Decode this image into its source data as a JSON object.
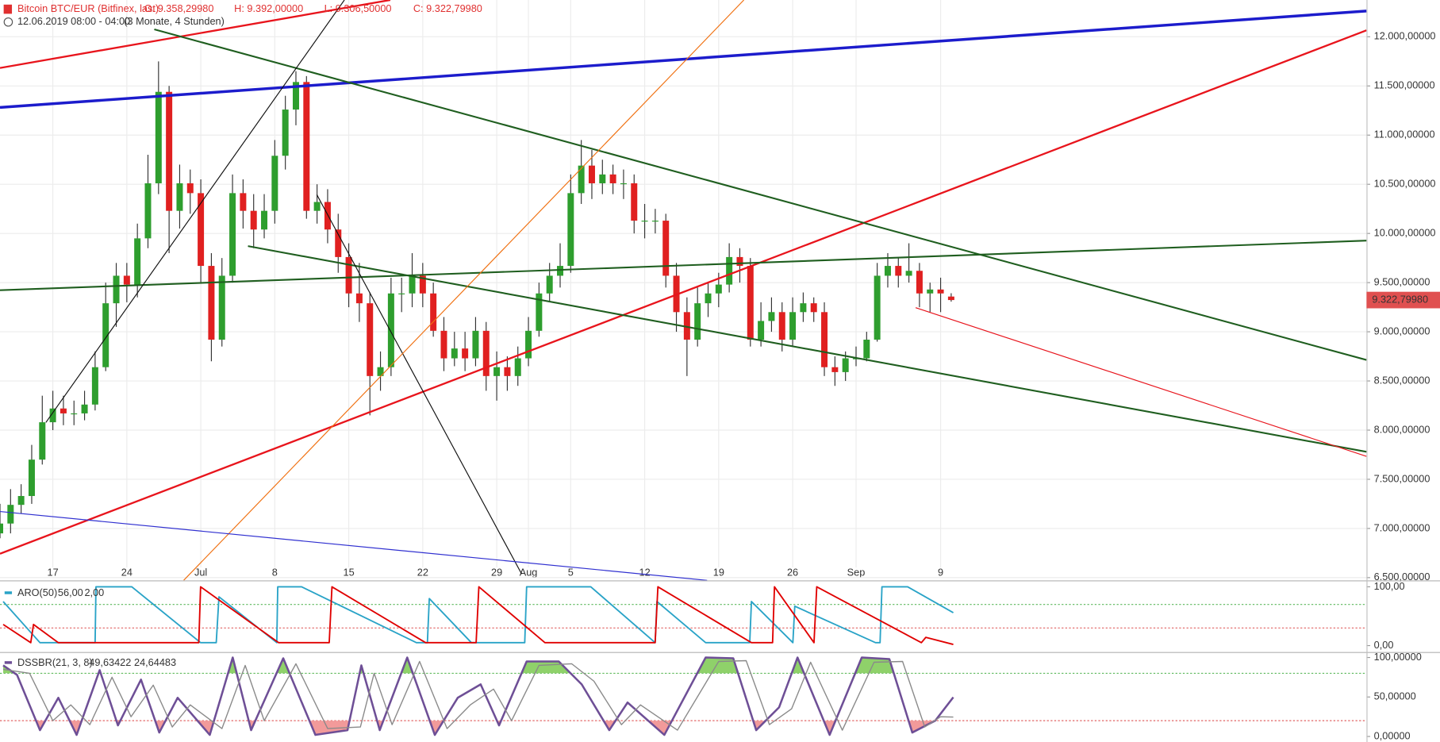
{
  "chart_data": [
    {
      "type": "candlestick",
      "title": "Bitcoin BTC/EUR (Bitfinex, last)",
      "header_values": [
        "O: 9.358,29980",
        "H: 9.392,00000",
        "L: 9.306,50000",
        "C: 9.322,79980"
      ],
      "subtitle": "12.06.2019 08:00 - 04:00",
      "period": "(3 Monate, 4 Stunden)",
      "last_price_label": "9.322,79980",
      "last_price_color": "#e05050",
      "up_color": "#2e9e2e",
      "down_color": "#e02020",
      "wick_color": "#333333",
      "grid": true,
      "xlim": [
        0,
        129.3
      ],
      "xticks": [
        {
          "value": 5,
          "label": "17"
        },
        {
          "value": 12,
          "label": "24"
        },
        {
          "value": 19,
          "label": "Jul"
        },
        {
          "value": 26,
          "label": "8"
        },
        {
          "value": 33,
          "label": "15"
        },
        {
          "value": 40,
          "label": "22"
        },
        {
          "value": 47,
          "label": "29"
        },
        {
          "value": 50,
          "label": "Aug"
        },
        {
          "value": 54,
          "label": "5"
        },
        {
          "value": 61,
          "label": "12"
        },
        {
          "value": 68,
          "label": "19"
        },
        {
          "value": 75,
          "label": "26"
        },
        {
          "value": 81,
          "label": "Sep"
        },
        {
          "value": 89,
          "label": "9"
        }
      ],
      "ylim": [
        6472,
        12374
      ],
      "yticks": [
        {
          "value": 12000,
          "label": "12.000,00000"
        },
        {
          "value": 11500,
          "label": "11.500,00000"
        },
        {
          "value": 11000,
          "label": "11.000,00000"
        },
        {
          "value": 10500,
          "label": "10.500,00000"
        },
        {
          "value": 10000,
          "label": "10.000,00000"
        },
        {
          "value": 9500,
          "label": "9.500,00000"
        },
        {
          "value": 9000,
          "label": "9.000,00000"
        },
        {
          "value": 8500,
          "label": "8.500,00000"
        },
        {
          "value": 8000,
          "label": "8.000,00000"
        },
        {
          "value": 7500,
          "label": "7.500,00000"
        },
        {
          "value": 7000,
          "label": "7.000,00000"
        },
        {
          "value": 6500,
          "label": "6.500,00000"
        }
      ],
      "x": [
        0,
        1,
        2,
        3,
        4,
        5,
        6,
        7,
        8,
        9,
        10,
        11,
        12,
        13,
        14,
        15,
        16,
        17,
        18,
        19,
        20,
        21,
        22,
        23,
        24,
        25,
        26,
        27,
        28,
        29,
        30,
        31,
        32,
        33,
        34,
        35,
        36,
        37,
        38,
        39,
        40,
        41,
        42,
        43,
        44,
        45,
        46,
        47,
        48,
        49,
        50,
        51,
        52,
        53,
        54,
        55,
        56,
        57,
        58,
        59,
        60,
        61,
        62,
        63,
        64,
        65,
        66,
        67,
        68,
        69,
        70,
        71,
        72,
        73,
        74,
        75,
        76,
        77,
        78,
        79,
        80,
        81,
        82,
        83,
        84,
        85,
        86,
        87,
        88,
        89,
        90
      ],
      "open": [
        6950,
        7050,
        7240,
        7330,
        7700,
        8080,
        8220,
        8170,
        8170,
        8260,
        8640,
        9290,
        9570,
        9480,
        9950,
        10510,
        11440,
        10230,
        10510,
        10410,
        9670,
        8920,
        9570,
        10410,
        10230,
        10040,
        10230,
        10790,
        11260,
        11540,
        10230,
        10320,
        10040,
        9760,
        9390,
        9290,
        8550,
        8640,
        9390,
        9390,
        9570,
        9390,
        9010,
        8730,
        8830,
        8730,
        9010,
        8550,
        8640,
        8550,
        8730,
        9010,
        9390,
        9570,
        9670,
        10410,
        10690,
        10510,
        10600,
        10510,
        10510,
        10130,
        10130,
        10130,
        9570,
        9200,
        8920,
        9290,
        9390,
        9480,
        9760,
        9670,
        8920,
        9110,
        9200,
        8920,
        9200,
        9290,
        9200,
        8640,
        8590,
        8730,
        8730,
        8920,
        9570,
        9670,
        9570,
        9620,
        9390,
        9430,
        9358.2998
      ],
      "high": [
        7250,
        7400,
        7450,
        7850,
        8350,
        8400,
        8350,
        8300,
        8400,
        8800,
        9500,
        9700,
        9700,
        10100,
        10800,
        11750,
        11500,
        10700,
        10650,
        10550,
        9800,
        9750,
        10600,
        10550,
        10400,
        10400,
        10950,
        11400,
        11650,
        11600,
        10500,
        10450,
        10200,
        9900,
        9700,
        9400,
        8800,
        9550,
        9550,
        9800,
        9700,
        9500,
        9150,
        9000,
        9000,
        9150,
        9100,
        8800,
        8750,
        8850,
        9150,
        9500,
        9700,
        9900,
        10600,
        10950,
        10850,
        10750,
        10700,
        10650,
        10600,
        10300,
        10250,
        10200,
        9700,
        9350,
        9450,
        9500,
        9600,
        9900,
        9850,
        9750,
        9300,
        9350,
        9300,
        9350,
        9400,
        9350,
        9300,
        8750,
        8800,
        8850,
        9000,
        9700,
        9800,
        9750,
        9900,
        9700,
        9500,
        9550,
        9392
      ],
      "low": [
        6900,
        6950,
        7150,
        7250,
        7650,
        8000,
        8050,
        8050,
        8100,
        8200,
        8600,
        9050,
        9300,
        9350,
        9850,
        10400,
        9800,
        10050,
        10200,
        9500,
        8700,
        8850,
        9500,
        10050,
        9850,
        9950,
        10100,
        10650,
        11100,
        10150,
        10100,
        9900,
        9600,
        9250,
        9100,
        8150,
        8400,
        8550,
        9200,
        9250,
        9250,
        8950,
        8600,
        8650,
        8600,
        8650,
        8400,
        8300,
        8400,
        8450,
        8650,
        8950,
        9300,
        9450,
        9600,
        10300,
        10350,
        10400,
        10400,
        10350,
        10000,
        9950,
        10000,
        9450,
        9000,
        8550,
        8850,
        9150,
        9250,
        9400,
        9500,
        8850,
        8850,
        9000,
        8800,
        8850,
        9100,
        9100,
        8550,
        8450,
        8500,
        8650,
        8700,
        8900,
        9450,
        9450,
        9500,
        9250,
        9200,
        9200,
        9306.5
      ],
      "close": [
        7050,
        7240,
        7330,
        7700,
        8080,
        8220,
        8170,
        8170,
        8260,
        8640,
        9290,
        9570,
        9480,
        9950,
        10510,
        11440,
        10230,
        10510,
        10410,
        9670,
        8920,
        9570,
        10410,
        10230,
        10040,
        10230,
        10790,
        11260,
        11540,
        10230,
        10320,
        10040,
        9760,
        9390,
        9290,
        8550,
        8640,
        9390,
        9390,
        9570,
        9390,
        9010,
        8730,
        8830,
        8730,
        9010,
        8550,
        8640,
        8550,
        8730,
        9010,
        9390,
        9570,
        9670,
        10410,
        10690,
        10510,
        10600,
        10510,
        10510,
        10130,
        10130,
        10130,
        9570,
        9200,
        8920,
        9290,
        9390,
        9480,
        9760,
        9670,
        8920,
        9110,
        9200,
        8920,
        9200,
        9290,
        9200,
        8640,
        8590,
        8730,
        8730,
        8920,
        9570,
        9670,
        9570,
        9620,
        9390,
        9430,
        9390,
        9322.7998
      ]
    },
    {
      "type": "line",
      "title": "ARO(50)",
      "title_color": "#29a3c7",
      "xlim": [
        0,
        129.3
      ],
      "ylim": [
        -10.9,
        109.4
      ],
      "yticks": [
        {
          "value": 100,
          "label": "100,00"
        },
        {
          "value": 0,
          "label": "0,00"
        }
      ],
      "levels": [
        {
          "value": 70,
          "color": "#5cb85c"
        },
        {
          "value": 30,
          "color": "#e06060"
        }
      ],
      "series": [
        {
          "color": "#29a3c7",
          "legend_value": "56,00",
          "x": [
            0.3,
            3.78,
            9.0,
            9.08,
            12.47,
            18.98,
            20.46,
            20.72,
            26.19,
            26.28,
            28.54,
            39.4,
            40.44,
            40.62,
            44.6,
            49.65,
            49.83,
            55.9,
            61.99,
            62.16,
            66.77,
            70.94,
            71.1,
            75.02,
            75.2,
            82.84,
            83.27,
            83.45,
            85.88,
            90.2
          ],
          "values": [
            75,
            5,
            5,
            100,
            100,
            5,
            5,
            83,
            5,
            100,
            100,
            5,
            5,
            80,
            5,
            5,
            100,
            100,
            5,
            75,
            5,
            5,
            75,
            5,
            67,
            5,
            5,
            100,
            100,
            56
          ]
        },
        {
          "color": "#e00000",
          "legend_value": "2,00",
          "x": [
            0.3,
            2.91,
            3.17,
            5.52,
            18.81,
            18.98,
            26.37,
            31.15,
            31.41,
            40.27,
            45.05,
            45.31,
            51.56,
            61.99,
            62.25,
            71.1,
            73.1,
            73.28,
            77.02,
            77.28,
            87.18,
            87.6,
            90.2
          ],
          "values": [
            36,
            5,
            36,
            5,
            5,
            100,
            5,
            5,
            100,
            5,
            5,
            100,
            5,
            5,
            100,
            5,
            5,
            100,
            5,
            100,
            5,
            14,
            2
          ]
        }
      ]
    },
    {
      "type": "line",
      "title": "DSSBR(21, 3, 8)",
      "title_color": "#6a5a8a",
      "xlim": [
        0,
        129.3
      ],
      "ylim": [
        -7.0,
        105.8
      ],
      "yticks": [
        {
          "value": 100,
          "label": "100,00000"
        },
        {
          "value": 50,
          "label": "50,00000"
        },
        {
          "value": 0,
          "label": "0,00000"
        }
      ],
      "levels": [
        {
          "value": 80,
          "color": "#5cb85c",
          "fill": "#8fd16a"
        },
        {
          "value": 20,
          "color": "#e06060",
          "fill": "#f29a9a"
        }
      ],
      "series": [
        {
          "color": "#6e4f96",
          "width": 2.2,
          "legend_value": "49,63422",
          "x": [
            0.3,
            1.61,
            3.78,
            5.52,
            7.25,
            9.43,
            11.16,
            13.34,
            15.07,
            16.81,
            19.85,
            22.02,
            23.76,
            26.8,
            29.84,
            32.88,
            34.19,
            35.93,
            38.53,
            41.14,
            43.31,
            45.48,
            47.22,
            49.83,
            52.87,
            55.04,
            57.65,
            59.38,
            62.86,
            66.77,
            69.38,
            71.55,
            73.72,
            75.46,
            78.5,
            81.54,
            84.15,
            86.32,
            88.49,
            90.2
          ],
          "values": [
            90,
            78,
            8,
            49,
            2,
            84,
            14,
            72,
            5,
            49,
            2,
            100,
            8,
            99,
            2,
            8,
            90,
            8,
            100,
            2,
            49,
            66,
            14,
            95,
            95,
            66,
            8,
            43,
            2,
            100,
            99,
            8,
            37,
            100,
            2,
            100,
            98,
            5,
            20,
            49.63422
          ]
        },
        {
          "color": "#8a8a8a",
          "width": 1.2,
          "legend_value": "24,64483",
          "x": [
            0.3,
            2.8,
            5.0,
            6.7,
            8.5,
            10.6,
            12.4,
            14.5,
            16.3,
            18.0,
            21.0,
            23.2,
            25.0,
            28.0,
            31.0,
            34.1,
            35.4,
            37.1,
            39.7,
            42.3,
            44.5,
            46.7,
            48.4,
            51.0,
            54.1,
            56.2,
            58.8,
            60.6,
            64.1,
            68.0,
            70.6,
            72.8,
            74.9,
            76.7,
            79.7,
            82.7,
            85.4,
            87.5,
            89.0,
            90.2
          ],
          "values": [
            85,
            80,
            20,
            40,
            15,
            75,
            25,
            65,
            12,
            40,
            10,
            90,
            20,
            92,
            10,
            12,
            80,
            15,
            95,
            10,
            40,
            60,
            20,
            90,
            92,
            70,
            15,
            40,
            8,
            95,
            96,
            15,
            35,
            94,
            8,
            94,
            95,
            12,
            25,
            24.64483
          ]
        }
      ]
    }
  ]
}
